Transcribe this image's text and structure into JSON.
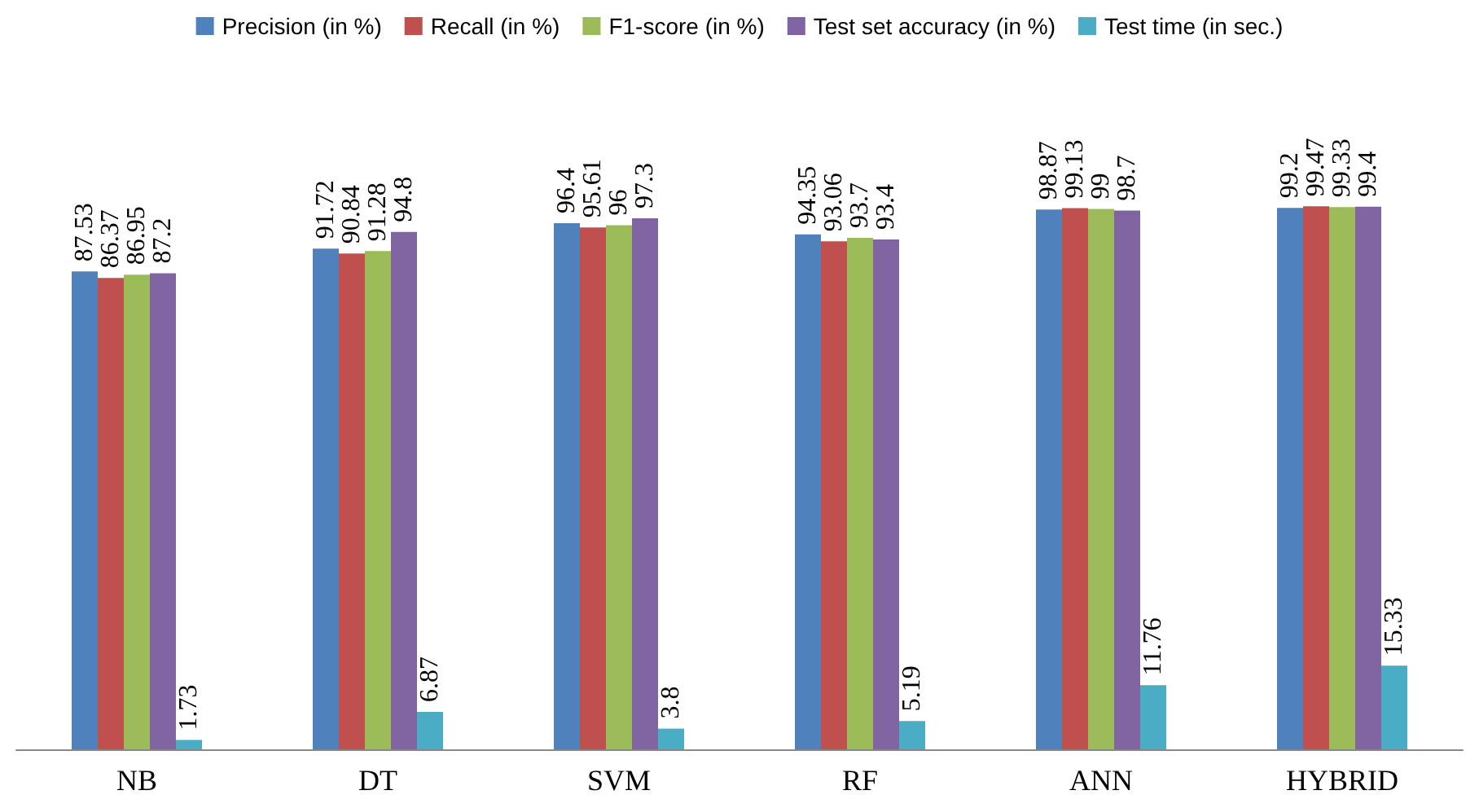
{
  "chart_data": {
    "type": "bar",
    "categories": [
      "NB",
      "DT",
      "SVM",
      "RF",
      "ANN",
      "HYBRID"
    ],
    "series": [
      {
        "name": "Precision (in %)",
        "color": "#4f81bd",
        "values": [
          87.53,
          91.72,
          96.4,
          94.35,
          98.87,
          99.2
        ]
      },
      {
        "name": "Recall (in %)",
        "color": "#c0504d",
        "values": [
          86.37,
          90.84,
          95.61,
          93.06,
          99.13,
          99.47
        ]
      },
      {
        "name": "F1-score (in %)",
        "color": "#9bbb59",
        "values": [
          86.95,
          91.28,
          96,
          93.7,
          99,
          99.33
        ]
      },
      {
        "name": "Test set accuracy (in %)",
        "color": "#8064a2",
        "values": [
          87.2,
          94.8,
          97.3,
          93.4,
          98.7,
          99.4
        ]
      },
      {
        "name": "Test time (in sec.)",
        "color": "#4bacc6",
        "values": [
          1.73,
          6.87,
          3.8,
          5.19,
          11.76,
          15.33
        ]
      }
    ],
    "data_labels": true,
    "legend": "top"
  }
}
